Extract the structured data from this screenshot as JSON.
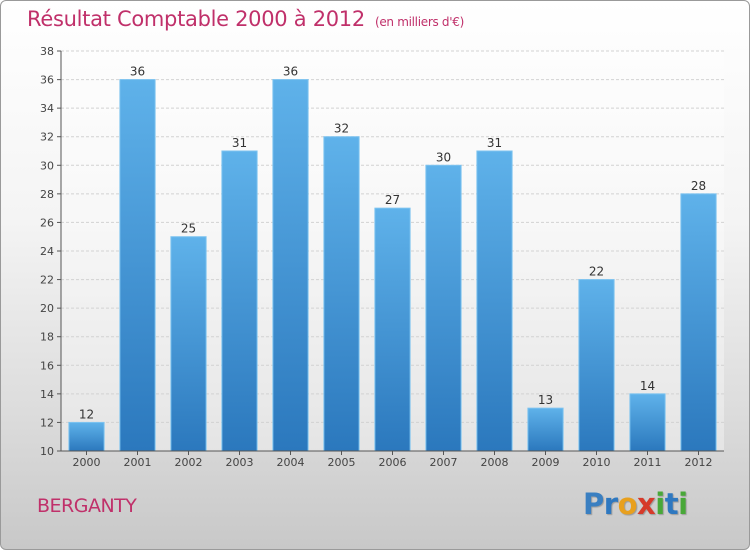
{
  "header": {
    "title": "Résultat Comptable 2000 à 2012",
    "subtitle": "(en milliers d'€)"
  },
  "footer": {
    "commune": "BERGANTY",
    "logo_letters": [
      "P",
      "r",
      "o",
      "x",
      "i",
      "t",
      "i"
    ],
    "logo_colors": [
      "#3a7fc1",
      "#2e78c0",
      "#e8a01e",
      "#d63a2a",
      "#48a838",
      "#2e78c0",
      "#48a838"
    ]
  },
  "colors": {
    "title": "#c0306a",
    "bar_light": "#5aaee8",
    "bar_dark": "#2e7dc0",
    "axis": "#444444",
    "grid": "#cccccc"
  },
  "chart_data": {
    "type": "bar",
    "title": "Résultat Comptable 2000 à 2012",
    "subtitle": "(en milliers d'€)",
    "xlabel": "",
    "ylabel": "",
    "categories": [
      "2000",
      "2001",
      "2002",
      "2003",
      "2004",
      "2005",
      "2006",
      "2007",
      "2008",
      "2009",
      "2010",
      "2011",
      "2012"
    ],
    "values": [
      12,
      36,
      25,
      31,
      36,
      32,
      27,
      30,
      31,
      13,
      22,
      14,
      28
    ],
    "ylim": [
      10,
      38
    ],
    "yticks": [
      10,
      12,
      14,
      16,
      18,
      20,
      22,
      24,
      26,
      28,
      30,
      32,
      34,
      36,
      38
    ],
    "grid": true,
    "legend": "none"
  }
}
